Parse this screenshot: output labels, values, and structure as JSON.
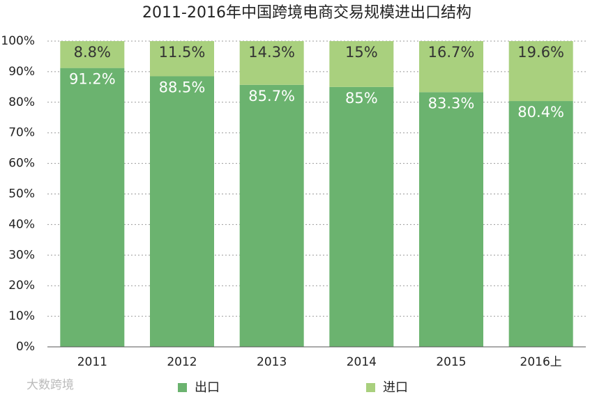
{
  "chart_data": {
    "type": "stacked_bar",
    "title": "2011-2016年中国跨境电商交易规模进出口结构",
    "categories": [
      "2011",
      "2012",
      "2013",
      "2014",
      "2015",
      "2016上"
    ],
    "series": [
      {
        "name": "出口",
        "color": "#6bb36f",
        "values": [
          91.2,
          88.5,
          85.7,
          85,
          83.3,
          80.4
        ],
        "value_labels": [
          "91.2%",
          "88.5%",
          "85.7%",
          "85%",
          "83.3%",
          "80.4%"
        ]
      },
      {
        "name": "进口",
        "color": "#a9d07e",
        "values": [
          8.8,
          11.5,
          14.3,
          15,
          16.7,
          19.6
        ],
        "value_labels": [
          "8.8%",
          "11.5%",
          "14.3%",
          "15%",
          "16.7%",
          "19.6%"
        ]
      }
    ],
    "ylim": [
      0,
      100
    ],
    "yticks": [
      {
        "value": 0,
        "label": "0%"
      },
      {
        "value": 10,
        "label": "10%"
      },
      {
        "value": 20,
        "label": "20%"
      },
      {
        "value": 30,
        "label": "30%"
      },
      {
        "value": 40,
        "label": "40%"
      },
      {
        "value": 50,
        "label": "50%"
      },
      {
        "value": 60,
        "label": "60%"
      },
      {
        "value": 70,
        "label": "70%"
      },
      {
        "value": 80,
        "label": "80%"
      },
      {
        "value": 90,
        "label": "90%"
      },
      {
        "value": 100,
        "label": "100%"
      }
    ],
    "grid": true,
    "watermark": "大数跨境"
  }
}
